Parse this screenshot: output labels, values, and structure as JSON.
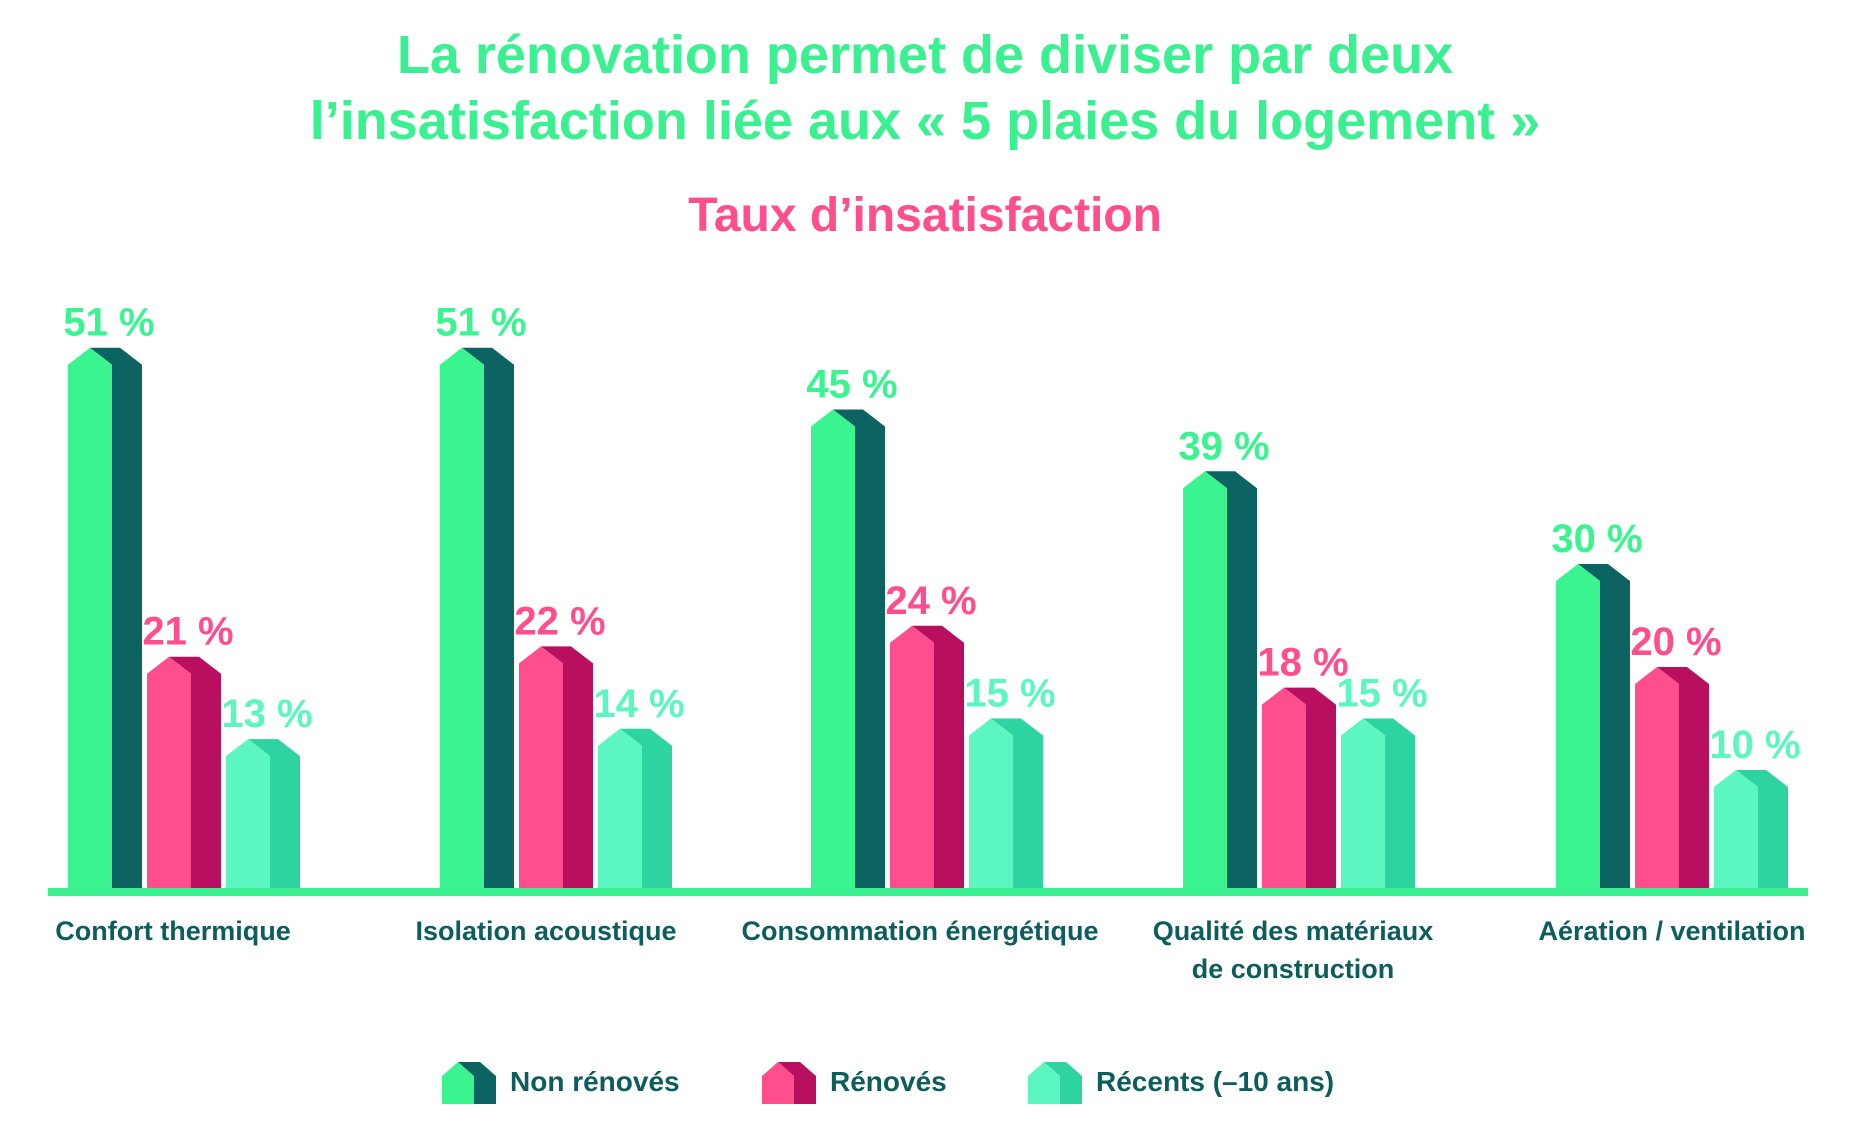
{
  "title_line1": "La rénovation permet de diviser par deux",
  "title_line2": "l’insatisfaction liée aux « 5 plaies du logement »",
  "subtitle": "Taux d’insatisfaction",
  "colors": {
    "title": "#3af090",
    "subtitle": "#ff4d8d",
    "axis": "#3af090",
    "text_dark": "#0d5d5d",
    "non_renoves_front": "#3af48f",
    "non_renoves_side": "#0d6262",
    "renoves_front": "#ff4d8d",
    "renoves_side": "#b8105e",
    "recents_front": "#5cf6c0",
    "recents_side": "#2dd4a2"
  },
  "chart_data": {
    "type": "bar",
    "categories": [
      [
        "Confort thermique"
      ],
      [
        "Isolation acoustique"
      ],
      [
        "Consommation énergétique"
      ],
      [
        "Qualité des matériaux",
        "de construction"
      ],
      [
        "Aération / ventilation"
      ]
    ],
    "series": [
      {
        "name": "Non rénovés",
        "values": [
          51,
          51,
          45,
          39,
          30
        ],
        "labels": [
          "51 %",
          "51 %",
          "45 %",
          "39 %",
          "30 %"
        ]
      },
      {
        "name": "Rénovés",
        "values": [
          21,
          22,
          24,
          18,
          20
        ],
        "labels": [
          "21 %",
          "22 %",
          "24 %",
          "18 %",
          "20 %"
        ]
      },
      {
        "name": "Récents (–10 ans)",
        "values": [
          13,
          14,
          15,
          15,
          10
        ],
        "labels": [
          "13 %",
          "14 %",
          "15 %",
          "15 %",
          "10 %"
        ]
      }
    ],
    "ylim": [
      0,
      60
    ],
    "legend_position": "bottom"
  }
}
